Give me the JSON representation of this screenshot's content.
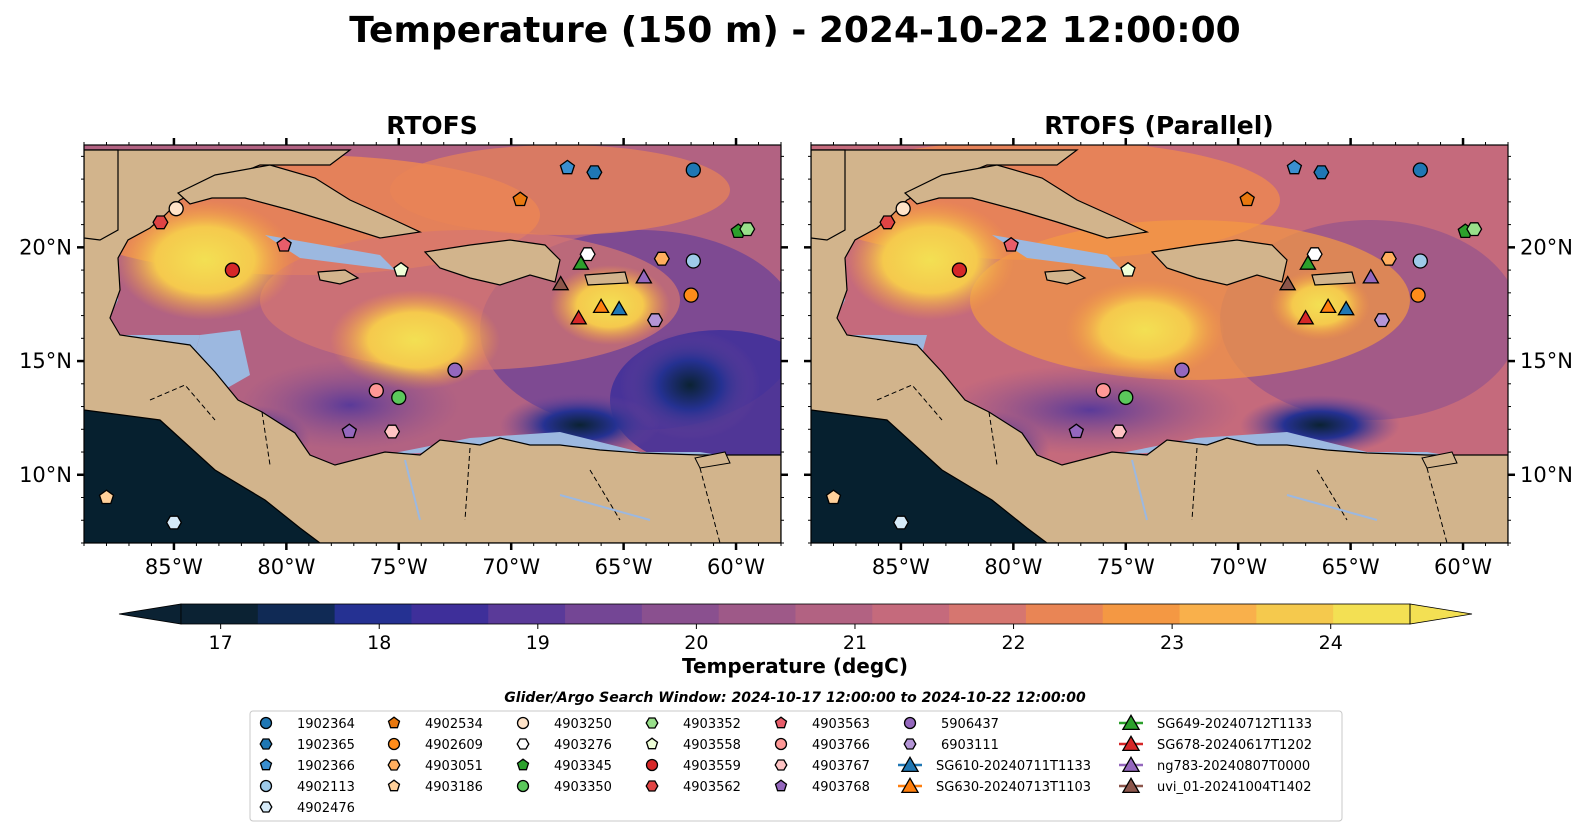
{
  "title": "Temperature (150 m) - 2024-10-22 12:00:00",
  "panels": [
    {
      "id": "left",
      "title": "RTOFS"
    },
    {
      "id": "right",
      "title": "RTOFS (Parallel)"
    }
  ],
  "map": {
    "lon_range": [
      -89,
      -58
    ],
    "lat_range": [
      7,
      24.5
    ],
    "x_ticks": [
      {
        "lon": -85,
        "label": "85°W"
      },
      {
        "lon": -80,
        "label": "80°W"
      },
      {
        "lon": -75,
        "label": "75°W"
      },
      {
        "lon": -70,
        "label": "70°W"
      },
      {
        "lon": -65,
        "label": "65°W"
      },
      {
        "lon": -60,
        "label": "60°W"
      }
    ],
    "y_ticks": [
      {
        "lat": 20,
        "label": "20°N"
      },
      {
        "lat": 15,
        "label": "15°N"
      },
      {
        "lat": 10,
        "label": "10°N"
      }
    ],
    "colors": {
      "land": "#d2b48c",
      "shallow": "#9cb8e0",
      "deep": "#06202f"
    }
  },
  "colorbar": {
    "label": "Temperature (degC)",
    "min": 16.75,
    "max": 24.5,
    "extend": "both",
    "ticks": [
      "17",
      "18",
      "19",
      "20",
      "21",
      "22",
      "23",
      "24"
    ],
    "colors": [
      "#0b2233",
      "#102a55",
      "#253192",
      "#3e2f9a",
      "#5a3a99",
      "#744695",
      "#8a508f",
      "#9e5988",
      "#b26282",
      "#c56a7c",
      "#d67670",
      "#e98555",
      "#f49843",
      "#f9b04b",
      "#f5c94d",
      "#f3e053"
    ]
  },
  "search_window": "Glider/Argo Search Window: 2024-10-17 12:00:00 to 2024-10-22 12:00:00",
  "legend_columns": [
    [
      {
        "label": "1902364",
        "marker": "circle",
        "color": "#1f77b4"
      },
      {
        "label": "1902365",
        "marker": "hexagon",
        "color": "#1f77b4"
      },
      {
        "label": "1902366",
        "marker": "pentagon",
        "color": "#3a8fd0"
      },
      {
        "label": "4902113",
        "marker": "circle",
        "color": "#9ecae9"
      },
      {
        "label": "4902476",
        "marker": "hexagon",
        "color": "#d6eaf8"
      }
    ],
    [
      {
        "label": "4902534",
        "marker": "pentagon",
        "color": "#e8780f"
      },
      {
        "label": "4902609",
        "marker": "circle",
        "color": "#ff8c1a"
      },
      {
        "label": "4903051",
        "marker": "hexagon",
        "color": "#ffae5e"
      },
      {
        "label": "4903186",
        "marker": "pentagon",
        "color": "#ffd09a"
      }
    ],
    [
      {
        "label": "4903250",
        "marker": "circle",
        "color": "#ffe3c8"
      },
      {
        "label": "4903276",
        "marker": "hexagon",
        "color": "#ffffff"
      },
      {
        "label": "4903345",
        "marker": "pentagon",
        "color": "#2ca02c"
      },
      {
        "label": "4903350",
        "marker": "circle",
        "color": "#5bc85b"
      }
    ],
    [
      {
        "label": "4903352",
        "marker": "hexagon",
        "color": "#98df8a"
      },
      {
        "label": "4903558",
        "marker": "pentagon",
        "color": "#efffd8"
      },
      {
        "label": "4903559",
        "marker": "circle",
        "color": "#d62728"
      },
      {
        "label": "4903562",
        "marker": "hexagon",
        "color": "#e04444"
      }
    ],
    [
      {
        "label": "4903563",
        "marker": "pentagon",
        "color": "#e85d6a"
      },
      {
        "label": "4903766",
        "marker": "circle",
        "color": "#ff9896"
      },
      {
        "label": "4903767",
        "marker": "hexagon",
        "color": "#ffc4c4"
      },
      {
        "label": "4903768",
        "marker": "pentagon",
        "color": "#9467bd"
      }
    ],
    [
      {
        "label": "5906437",
        "marker": "circle",
        "color": "#9467bd"
      },
      {
        "label": "6903111",
        "marker": "hexagon",
        "color": "#b495d6"
      },
      {
        "label": "SG610-20240711T1133",
        "marker": "triangle",
        "color": "#1f77b4",
        "line": true
      },
      {
        "label": "SG630-20240713T1103",
        "marker": "triangle",
        "color": "#ff7f0e",
        "line": true
      }
    ],
    [
      {
        "label": "SG649-20240712T1133",
        "marker": "triangle",
        "color": "#2ca02c",
        "line": true
      },
      {
        "label": "SG678-20240617T1202",
        "marker": "triangle",
        "color": "#d62728",
        "line": true
      },
      {
        "label": "ng783-20240807T0000",
        "marker": "triangle",
        "color": "#9467bd",
        "line": true
      },
      {
        "label": "uvi_01-20241004T1402",
        "marker": "triangle",
        "color": "#8c564b",
        "line": true
      }
    ]
  ],
  "platform_markers": [
    {
      "lon": -61.9,
      "lat": 23.4,
      "marker": "circle",
      "color": "#1f77b4",
      "id": "1902364"
    },
    {
      "lon": -66.3,
      "lat": 23.3,
      "marker": "hexagon",
      "color": "#1f77b4",
      "id": "1902365"
    },
    {
      "lon": -67.5,
      "lat": 23.5,
      "marker": "pentagon",
      "color": "#3a8fd0",
      "id": "1902366"
    },
    {
      "lon": -61.9,
      "lat": 19.4,
      "marker": "circle",
      "color": "#9ecae9",
      "id": "4902113"
    },
    {
      "lon": -85.0,
      "lat": 7.9,
      "marker": "hexagon",
      "color": "#d6eaf8",
      "id": "4902476"
    },
    {
      "lon": -69.6,
      "lat": 22.1,
      "marker": "pentagon",
      "color": "#e8780f",
      "id": "4902534"
    },
    {
      "lon": -62.0,
      "lat": 17.9,
      "marker": "circle",
      "color": "#ff8c1a",
      "id": "4902609"
    },
    {
      "lon": -63.3,
      "lat": 19.5,
      "marker": "hexagon",
      "color": "#ffae5e",
      "id": "4903051"
    },
    {
      "lon": -88.0,
      "lat": 9.0,
      "marker": "pentagon",
      "color": "#ffd09a",
      "id": "4903186"
    },
    {
      "lon": -84.9,
      "lat": 21.7,
      "marker": "circle",
      "color": "#ffe3c8",
      "id": "4903250"
    },
    {
      "lon": -66.6,
      "lat": 19.7,
      "marker": "hexagon",
      "color": "#ffffff",
      "id": "4903276"
    },
    {
      "lon": -59.9,
      "lat": 20.7,
      "marker": "pentagon",
      "color": "#2ca02c",
      "id": "4903345"
    },
    {
      "lon": -75.0,
      "lat": 13.4,
      "marker": "circle",
      "color": "#5bc85b",
      "id": "4903350"
    },
    {
      "lon": -59.5,
      "lat": 20.8,
      "marker": "hexagon",
      "color": "#98df8a",
      "id": "4903352"
    },
    {
      "lon": -74.9,
      "lat": 19.0,
      "marker": "pentagon",
      "color": "#efffd8",
      "id": "4903558"
    },
    {
      "lon": -82.4,
      "lat": 19.0,
      "marker": "circle",
      "color": "#d62728",
      "id": "4903559"
    },
    {
      "lon": -85.6,
      "lat": 21.1,
      "marker": "hexagon",
      "color": "#e04444",
      "id": "4903562"
    },
    {
      "lon": -80.1,
      "lat": 20.1,
      "marker": "pentagon",
      "color": "#e85d6a",
      "id": "4903563"
    },
    {
      "lon": -76.0,
      "lat": 13.7,
      "marker": "circle",
      "color": "#ff9896",
      "id": "4903766"
    },
    {
      "lon": -75.3,
      "lat": 11.9,
      "marker": "hexagon",
      "color": "#ffc4c4",
      "id": "4903767"
    },
    {
      "lon": -77.2,
      "lat": 11.9,
      "marker": "pentagon",
      "color": "#9467bd",
      "id": "4903768"
    },
    {
      "lon": -72.5,
      "lat": 14.6,
      "marker": "circle",
      "color": "#9467bd",
      "id": "5906437"
    },
    {
      "lon": -63.6,
      "lat": 16.8,
      "marker": "hexagon",
      "color": "#b495d6",
      "id": "6903111"
    },
    {
      "lon": -65.2,
      "lat": 17.3,
      "marker": "triangle",
      "color": "#1f77b4",
      "id": "SG610-20240711T1133"
    },
    {
      "lon": -66.0,
      "lat": 17.4,
      "marker": "triangle",
      "color": "#ff7f0e",
      "id": "SG630-20240713T1103"
    },
    {
      "lon": -66.9,
      "lat": 19.3,
      "marker": "triangle",
      "color": "#2ca02c",
      "id": "SG649-20240712T1133"
    },
    {
      "lon": -67.0,
      "lat": 16.9,
      "marker": "triangle",
      "color": "#d62728",
      "id": "SG678-20240617T1202"
    },
    {
      "lon": -64.1,
      "lat": 18.7,
      "marker": "triangle",
      "color": "#9467bd",
      "id": "ng783-20240807T0000"
    },
    {
      "lon": -67.8,
      "lat": 18.4,
      "marker": "triangle",
      "color": "#8c564b",
      "id": "uvi_01-20241004T1402"
    }
  ]
}
